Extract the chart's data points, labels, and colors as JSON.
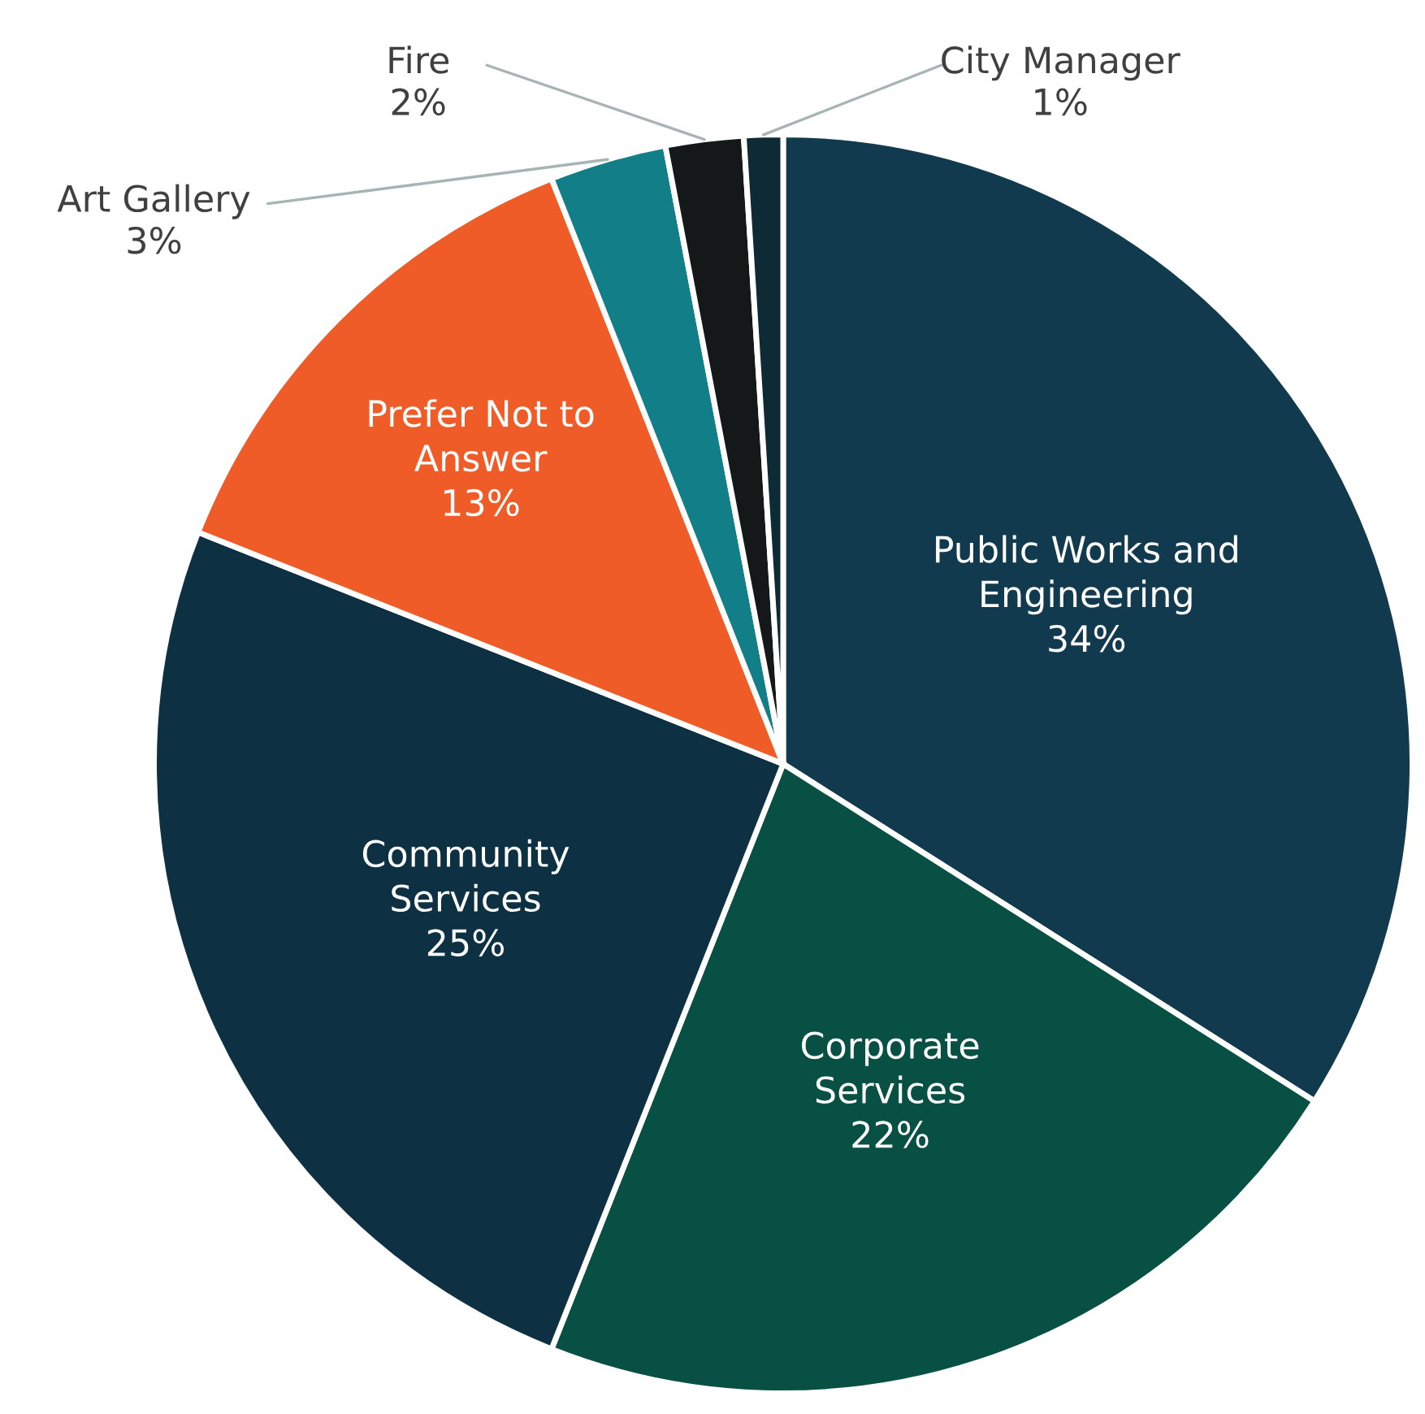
{
  "chart_data": {
    "type": "pie",
    "categories": [
      "Public Works and\nEngineering",
      "Corporate\nServices",
      "Community\nServices",
      "Prefer Not to\nAnswer",
      "Art Gallery",
      "Fire",
      "City Manager"
    ],
    "values": [
      34,
      22,
      25,
      13,
      3,
      2,
      1
    ],
    "value_labels": [
      "34%",
      "22%",
      "25%",
      "13%",
      "3%",
      "2%",
      "1%"
    ],
    "colors": [
      "#123a4f",
      "#075043",
      "#0d3043",
      "#ef5c28",
      "#127e87",
      "#141819",
      "#0e2a35"
    ],
    "legend": false
  }
}
